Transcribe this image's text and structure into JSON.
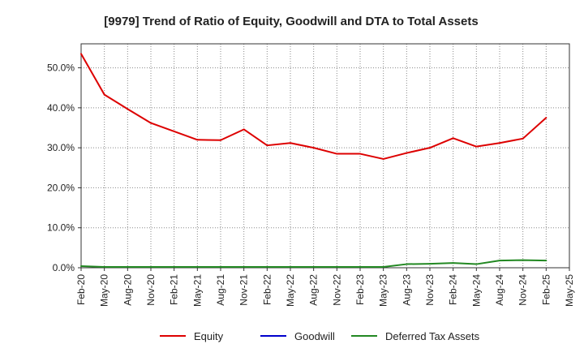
{
  "chart_data": {
    "type": "line",
    "title": "[9979]  Trend of Ratio of Equity, Goodwill and DTA to Total Assets",
    "xlabel": "",
    "ylabel": "",
    "ylim": [
      0,
      56
    ],
    "y_ticks": [
      0,
      10,
      20,
      30,
      40,
      50
    ],
    "y_tick_labels": [
      "0.0%",
      "10.0%",
      "20.0%",
      "30.0%",
      "40.0%",
      "50.0%"
    ],
    "x_tick_labels": [
      "Feb-20",
      "May-20",
      "Aug-20",
      "Nov-20",
      "Feb-21",
      "May-21",
      "Aug-21",
      "Nov-21",
      "Feb-22",
      "May-22",
      "Aug-22",
      "Nov-22",
      "Feb-23",
      "May-23",
      "Aug-23",
      "Nov-23",
      "Feb-24",
      "May-24",
      "Aug-24",
      "Nov-24",
      "Feb-25",
      "May-25"
    ],
    "grid": true,
    "legend_position": "bottom",
    "series": [
      {
        "name": "Equity",
        "color": "#dd0000",
        "values": [
          53.5,
          43.3,
          39.7,
          36.2,
          34.1,
          32.0,
          31.9,
          34.6,
          30.6,
          31.2,
          30.0,
          28.5,
          28.5,
          27.2,
          28.7,
          30.0,
          32.4,
          30.3,
          31.2,
          32.3,
          37.5,
          null
        ]
      },
      {
        "name": "Goodwill",
        "color": "#0000cc",
        "values": [
          null,
          null,
          null,
          null,
          null,
          null,
          null,
          null,
          null,
          null,
          null,
          null,
          null,
          null,
          null,
          null,
          null,
          null,
          null,
          null,
          null,
          null
        ]
      },
      {
        "name": "Deferred Tax Assets",
        "color": "#228822",
        "values": [
          0.4,
          0.2,
          0.2,
          0.2,
          0.2,
          0.2,
          0.2,
          0.2,
          0.2,
          0.2,
          0.2,
          0.2,
          0.2,
          0.2,
          0.9,
          1.0,
          1.2,
          0.9,
          1.8,
          1.9,
          1.8,
          null
        ]
      }
    ]
  }
}
